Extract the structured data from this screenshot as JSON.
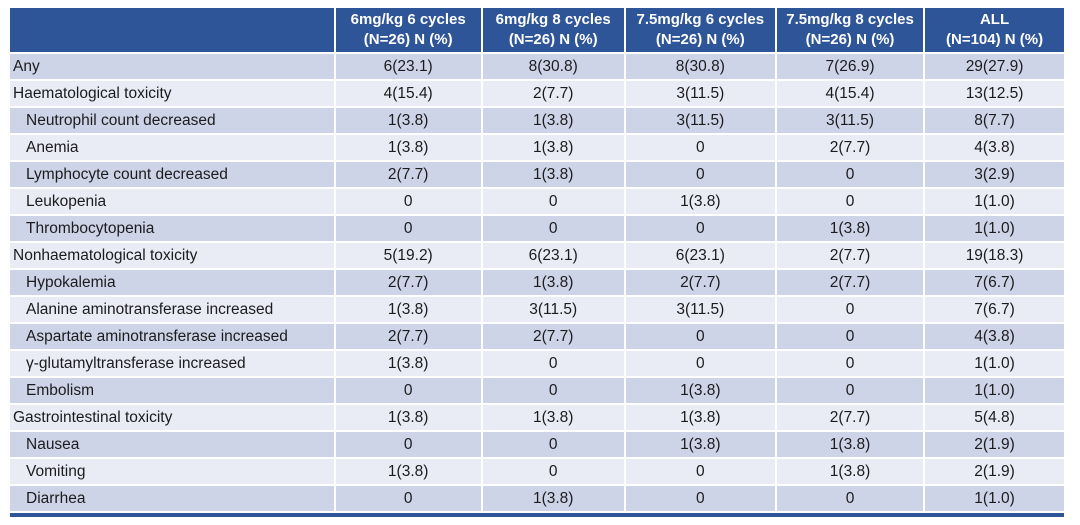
{
  "colors": {
    "header_bg": "#2E5597",
    "header_text": "#FFFFFF",
    "stripe_dark": "#CED4E8",
    "stripe_light": "#E9EBF5",
    "body_text": "#1C1C1E"
  },
  "table": {
    "title_semantic": "Adverse events by dose group",
    "columns": [
      {
        "line1": "",
        "line2": ""
      },
      {
        "line1": "6mg/kg 6 cycles",
        "line2": "(N=26) N (%)"
      },
      {
        "line1": "6mg/kg 8 cycles",
        "line2": "(N=26) N (%)"
      },
      {
        "line1": "7.5mg/kg 6 cycles",
        "line2": "(N=26) N (%)"
      },
      {
        "line1": "7.5mg/kg 8 cycles",
        "line2": "(N=26) N (%)"
      },
      {
        "line1": "ALL",
        "line2": "(N=104) N (%)"
      }
    ],
    "rows": [
      {
        "label": "Any",
        "indent": false,
        "values": [
          "6(23.1)",
          "8(30.8)",
          "8(30.8)",
          "7(26.9)",
          "29(27.9)"
        ]
      },
      {
        "label": "Haematological toxicity",
        "indent": false,
        "values": [
          "4(15.4)",
          "2(7.7)",
          "3(11.5)",
          "4(15.4)",
          "13(12.5)"
        ]
      },
      {
        "label": "Neutrophil count decreased",
        "indent": true,
        "values": [
          "1(3.8)",
          "1(3.8)",
          "3(11.5)",
          "3(11.5)",
          "8(7.7)"
        ]
      },
      {
        "label": "Anemia",
        "indent": true,
        "values": [
          "1(3.8)",
          "1(3.8)",
          "0",
          "2(7.7)",
          "4(3.8)"
        ]
      },
      {
        "label": "Lymphocyte count decreased",
        "indent": true,
        "values": [
          "2(7.7)",
          "1(3.8)",
          "0",
          "0",
          "3(2.9)"
        ]
      },
      {
        "label": "Leukopenia",
        "indent": true,
        "values": [
          "0",
          "0",
          "1(3.8)",
          "0",
          "1(1.0)"
        ]
      },
      {
        "label": "Thrombocytopenia",
        "indent": true,
        "values": [
          "0",
          "0",
          "0",
          "1(3.8)",
          "1(1.0)"
        ]
      },
      {
        "label": "Nonhaematological toxicity",
        "indent": false,
        "values": [
          "5(19.2)",
          "6(23.1)",
          "6(23.1)",
          "2(7.7)",
          "19(18.3)"
        ]
      },
      {
        "label": "Hypokalemia",
        "indent": true,
        "values": [
          "2(7.7)",
          "1(3.8)",
          "2(7.7)",
          "2(7.7)",
          "7(6.7)"
        ]
      },
      {
        "label": "Alanine aminotransferase increased",
        "indent": true,
        "values": [
          "1(3.8)",
          "3(11.5)",
          "3(11.5)",
          "0",
          "7(6.7)"
        ]
      },
      {
        "label": "Aspartate aminotransferase increased",
        "indent": true,
        "values": [
          "2(7.7)",
          "2(7.7)",
          "0",
          "0",
          "4(3.8)"
        ]
      },
      {
        "label": "γ-glutamyltransferase increased",
        "indent": true,
        "values": [
          "1(3.8)",
          "0",
          "0",
          "0",
          "1(1.0)"
        ]
      },
      {
        "label": "Embolism",
        "indent": true,
        "values": [
          "0",
          "0",
          "1(3.8)",
          "0",
          "1(1.0)"
        ]
      },
      {
        "label": "Gastrointestinal toxicity",
        "indent": false,
        "values": [
          "1(3.8)",
          "1(3.8)",
          "1(3.8)",
          "2(7.7)",
          "5(4.8)"
        ]
      },
      {
        "label": "Nausea",
        "indent": true,
        "values": [
          "0",
          "0",
          "1(3.8)",
          "1(3.8)",
          "2(1.9)"
        ]
      },
      {
        "label": "Vomiting",
        "indent": true,
        "values": [
          "1(3.8)",
          "0",
          "0",
          "1(3.8)",
          "2(1.9)"
        ]
      },
      {
        "label": "Diarrhea",
        "indent": true,
        "values": [
          "0",
          "1(3.8)",
          "0",
          "0",
          "1(1.0)"
        ]
      }
    ],
    "column_widths_pct": [
      31.0,
      13.9,
      13.5,
      14.3,
      14.0,
      13.3
    ]
  }
}
